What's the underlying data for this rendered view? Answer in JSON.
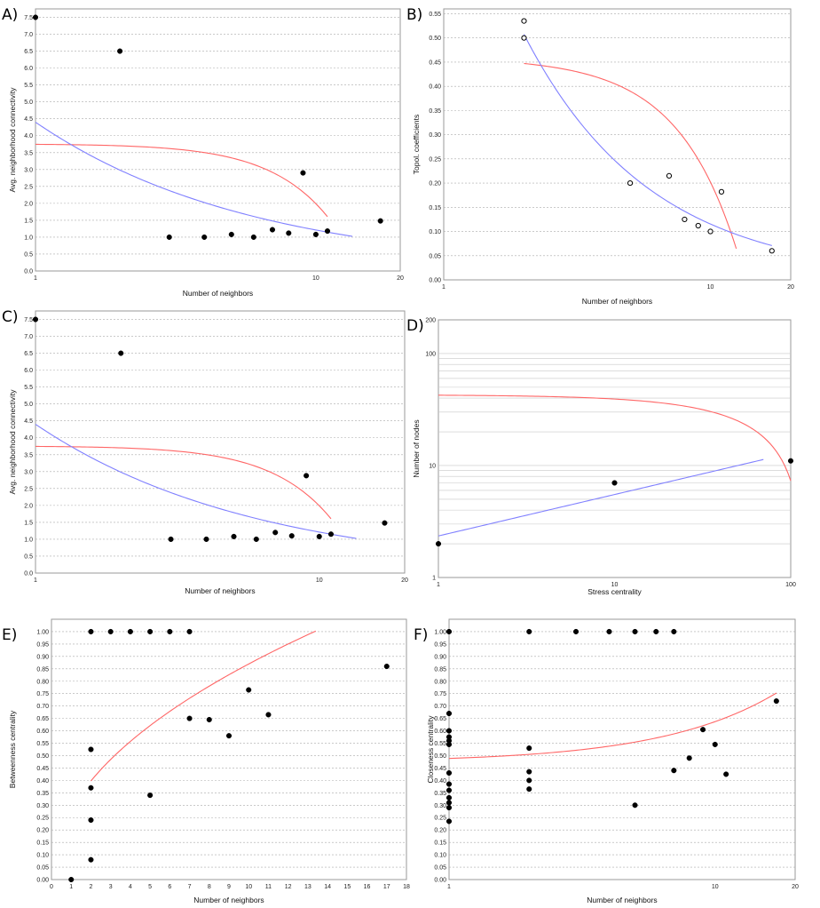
{
  "chart_data": [
    {
      "panel": "A)",
      "type": "scatter",
      "xlabel": "Number of neighbors",
      "ylabel": "Avg. neighborhood connectivity",
      "x_scale": "log",
      "xlim": [
        1,
        20
      ],
      "ylim": [
        0,
        7.75
      ],
      "xticks": [
        1,
        10,
        20
      ],
      "yticks": [
        0.0,
        0.5,
        1.0,
        1.5,
        2.0,
        2.5,
        3.0,
        3.5,
        4.0,
        4.5,
        5.0,
        5.5,
        6.0,
        6.5,
        7.0,
        7.5
      ],
      "grid": true,
      "marker": "filled",
      "points": [
        [
          1,
          7.5
        ],
        [
          2,
          6.5
        ],
        [
          3,
          1.0
        ],
        [
          4,
          1.0
        ],
        [
          5,
          1.08
        ],
        [
          6,
          1.0
        ],
        [
          7,
          1.22
        ],
        [
          8,
          1.12
        ],
        [
          9,
          2.9
        ],
        [
          10,
          1.08
        ],
        [
          11,
          1.18
        ],
        [
          17,
          1.48
        ]
      ],
      "fits": [
        {
          "color": "#ff6666",
          "fn": "quad",
          "a": 3.75,
          "b": 0.014,
          "c": -0.019,
          "xrange": [
            1,
            11
          ]
        },
        {
          "color": "#8080ff",
          "fn": "power",
          "a": 4.4,
          "b": -0.56,
          "xrange": [
            1,
            13.5
          ]
        }
      ]
    },
    {
      "panel": "B)",
      "type": "scatter",
      "xlabel": "Number of neighbors",
      "ylabel": "Topol. coefficients",
      "x_scale": "log",
      "xlim": [
        1,
        20
      ],
      "ylim": [
        0,
        0.56
      ],
      "xticks": [
        1,
        10,
        20
      ],
      "yticks": [
        0.0,
        0.05,
        0.1,
        0.15,
        0.2,
        0.25,
        0.3,
        0.35,
        0.4,
        0.45,
        0.5,
        0.55
      ],
      "grid": true,
      "marker": "open",
      "points": [
        [
          2,
          0.535
        ],
        [
          2,
          0.5
        ],
        [
          5,
          0.2
        ],
        [
          7,
          0.215
        ],
        [
          8,
          0.125
        ],
        [
          9,
          0.112
        ],
        [
          10,
          0.1
        ],
        [
          11,
          0.182
        ],
        [
          17,
          0.06
        ]
      ],
      "fits": [
        {
          "color": "#ff6666",
          "fn": "quad",
          "a": 0.462,
          "b": -0.0028,
          "c": -0.00232,
          "xrange": [
            2,
            12.5
          ]
        },
        {
          "color": "#8080ff",
          "fn": "power",
          "a": 0.96,
          "b": -0.92,
          "xrange": [
            2,
            17
          ]
        }
      ]
    },
    {
      "panel": "C)",
      "type": "scatter",
      "xlabel": "Number of neighbors",
      "ylabel": "Avg. neighborhood connectivity",
      "x_scale": "log",
      "xlim": [
        1,
        20
      ],
      "ylim": [
        0,
        7.75
      ],
      "xticks": [
        1,
        10,
        20
      ],
      "yticks": [
        0.0,
        0.5,
        1.0,
        1.5,
        2.0,
        2.5,
        3.0,
        3.5,
        4.0,
        4.5,
        5.0,
        5.5,
        6.0,
        6.5,
        7.0,
        7.5
      ],
      "grid": true,
      "marker": "filled",
      "points": [
        [
          1,
          7.5
        ],
        [
          2,
          6.5
        ],
        [
          3,
          1.0
        ],
        [
          4,
          1.0
        ],
        [
          5,
          1.08
        ],
        [
          6,
          1.0
        ],
        [
          7,
          1.2
        ],
        [
          8,
          1.1
        ],
        [
          9,
          2.88
        ],
        [
          10,
          1.08
        ],
        [
          11,
          1.15
        ],
        [
          17,
          1.48
        ]
      ],
      "fits": [
        {
          "color": "#ff6666",
          "fn": "quad",
          "a": 3.75,
          "b": 0.014,
          "c": -0.019,
          "xrange": [
            1,
            11
          ]
        },
        {
          "color": "#8080ff",
          "fn": "power",
          "a": 4.4,
          "b": -0.56,
          "xrange": [
            1,
            13.5
          ]
        }
      ]
    },
    {
      "panel": "D)",
      "type": "scatter",
      "xlabel": "Stress centrality",
      "ylabel": "Number of nodes",
      "x_scale": "log",
      "y_scale": "log",
      "xlim": [
        1,
        100
      ],
      "ylim": [
        1,
        200
      ],
      "xticks": [
        1,
        10,
        100
      ],
      "yticks": [
        1,
        10,
        100,
        200
      ],
      "grid": true,
      "marker": "filled",
      "points": [
        [
          1,
          2
        ],
        [
          10,
          7
        ],
        [
          100,
          11
        ]
      ],
      "fits": [
        {
          "color": "#ff6666",
          "fn": "lin",
          "a": 42.8,
          "b": -0.355,
          "xrange": [
            1,
            100
          ]
        },
        {
          "color": "#8080ff",
          "fn": "power",
          "a": 2.35,
          "b": 0.37,
          "xrange": [
            1,
            70
          ]
        }
      ]
    },
    {
      "panel": "E)",
      "type": "scatter",
      "xlabel": "Number of neighbors",
      "ylabel": "Betweenness centrality",
      "x_scale": "linear",
      "xlim": [
        0,
        18
      ],
      "ylim": [
        0,
        1.05
      ],
      "xticks": [
        0,
        1,
        2,
        3,
        4,
        5,
        6,
        7,
        8,
        9,
        10,
        11,
        12,
        13,
        14,
        15,
        16,
        17,
        18
      ],
      "yticks": [
        0.0,
        0.05,
        0.1,
        0.15,
        0.2,
        0.25,
        0.3,
        0.35,
        0.4,
        0.45,
        0.5,
        0.55,
        0.6,
        0.65,
        0.7,
        0.75,
        0.8,
        0.85,
        0.9,
        0.95,
        1.0
      ],
      "grid": true,
      "marker": "filled",
      "points": [
        [
          1,
          0.0
        ],
        [
          2,
          0.08
        ],
        [
          2,
          0.24
        ],
        [
          2,
          0.37
        ],
        [
          2,
          0.525
        ],
        [
          2,
          1.0
        ],
        [
          3,
          1.0
        ],
        [
          4,
          1.0
        ],
        [
          5,
          1.0
        ],
        [
          5,
          0.34
        ],
        [
          6,
          1.0
        ],
        [
          7,
          1.0
        ],
        [
          7,
          0.65
        ],
        [
          8,
          0.645
        ],
        [
          9,
          0.58
        ],
        [
          10,
          0.765
        ],
        [
          11,
          0.665
        ],
        [
          17,
          0.86
        ]
      ],
      "fits": [
        {
          "color": "#ff6666",
          "fn": "power",
          "a": 0.284,
          "b": 0.486,
          "xrange": [
            2,
            13.4
          ]
        }
      ]
    },
    {
      "panel": "F)",
      "type": "scatter",
      "xlabel": "Number of neighbors",
      "ylabel": "Closeness centrality",
      "x_scale": "log",
      "xlim": [
        1,
        20
      ],
      "ylim": [
        0,
        1.05
      ],
      "xticks": [
        1,
        10,
        20
      ],
      "yticks": [
        0.0,
        0.05,
        0.1,
        0.15,
        0.2,
        0.25,
        0.3,
        0.35,
        0.4,
        0.45,
        0.5,
        0.55,
        0.6,
        0.65,
        0.7,
        0.75,
        0.8,
        0.85,
        0.9,
        0.95,
        1.0
      ],
      "grid": true,
      "marker": "filled",
      "points": [
        [
          1,
          1.0
        ],
        [
          1,
          0.67
        ],
        [
          1,
          0.6
        ],
        [
          1,
          0.575
        ],
        [
          1,
          0.56
        ],
        [
          1,
          0.545
        ],
        [
          1,
          0.43
        ],
        [
          1,
          0.385
        ],
        [
          1,
          0.36
        ],
        [
          1,
          0.33
        ],
        [
          1,
          0.31
        ],
        [
          1,
          0.29
        ],
        [
          1,
          0.235
        ],
        [
          2,
          1.0
        ],
        [
          2,
          0.53
        ],
        [
          2,
          0.435
        ],
        [
          2,
          0.4
        ],
        [
          2,
          0.365
        ],
        [
          3,
          1.0
        ],
        [
          4,
          1.0
        ],
        [
          5,
          1.0
        ],
        [
          5,
          0.3
        ],
        [
          6,
          1.0
        ],
        [
          7,
          1.0
        ],
        [
          7,
          0.44
        ],
        [
          8,
          0.49
        ],
        [
          9,
          0.605
        ],
        [
          10,
          0.545
        ],
        [
          11,
          0.425
        ],
        [
          17,
          0.72
        ]
      ],
      "fits": [
        {
          "color": "#ff6666",
          "fn": "lin",
          "a": 0.472,
          "b": 0.0165,
          "xrange": [
            1,
            17
          ]
        }
      ]
    }
  ]
}
